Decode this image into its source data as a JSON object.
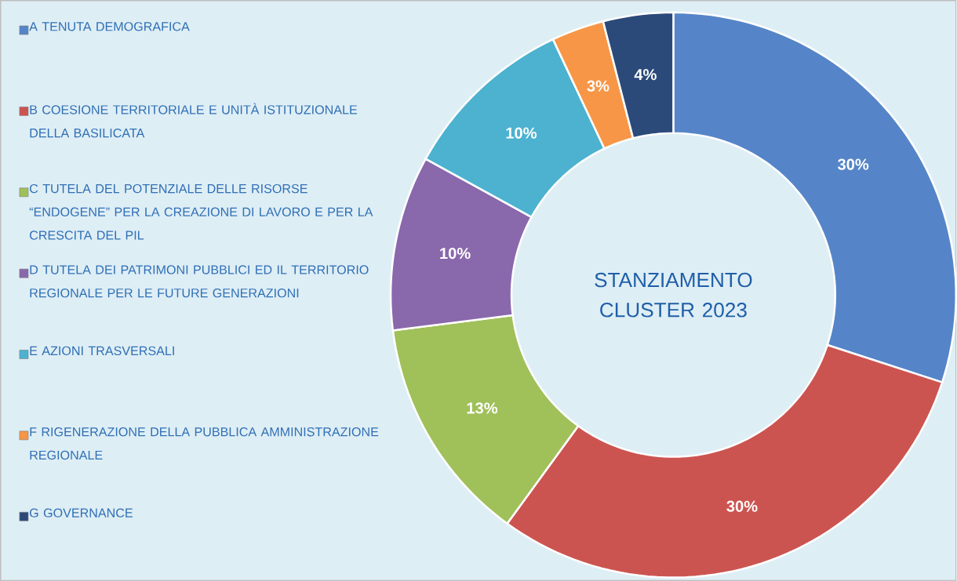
{
  "chart_data": {
    "type": "donut",
    "title": "STANZIAMENTO CLUSTER 2023",
    "categories": [
      "A TENUTA DEMOGRAFICA",
      "B COESIONE TERRITORIALE E UNITÀ ISTITUZIONALE DELLA BASILICATA",
      "C TUTELA DEL POTENZIALE DELLE RISORSE “ENDOGENE” PER LA CREAZIONE DI LAVORO E PER LA CRESCITA DEL PIL",
      "D TUTELA DEI PATRIMONI PUBBLICI ED IL TERRITORIO REGIONALE PER LE FUTURE GENERAZIONI",
      "E AZIONI TRASVERSALI",
      "F RIGENERAZIONE DELLA PUBBLICA AMMINISTRAZIONE REGIONALE",
      "G GOVERNANCE"
    ],
    "values": [
      30,
      30,
      13,
      10,
      10,
      3,
      4
    ],
    "value_labels": [
      "30%",
      "30%",
      "13%",
      "10%",
      "10%",
      "3%",
      "4%"
    ],
    "colors": [
      "#5585c8",
      "#cc5450",
      "#a0c05a",
      "#8a68ac",
      "#4cb2d0",
      "#f79646",
      "#2b4a7a"
    ],
    "legend": "left"
  }
}
